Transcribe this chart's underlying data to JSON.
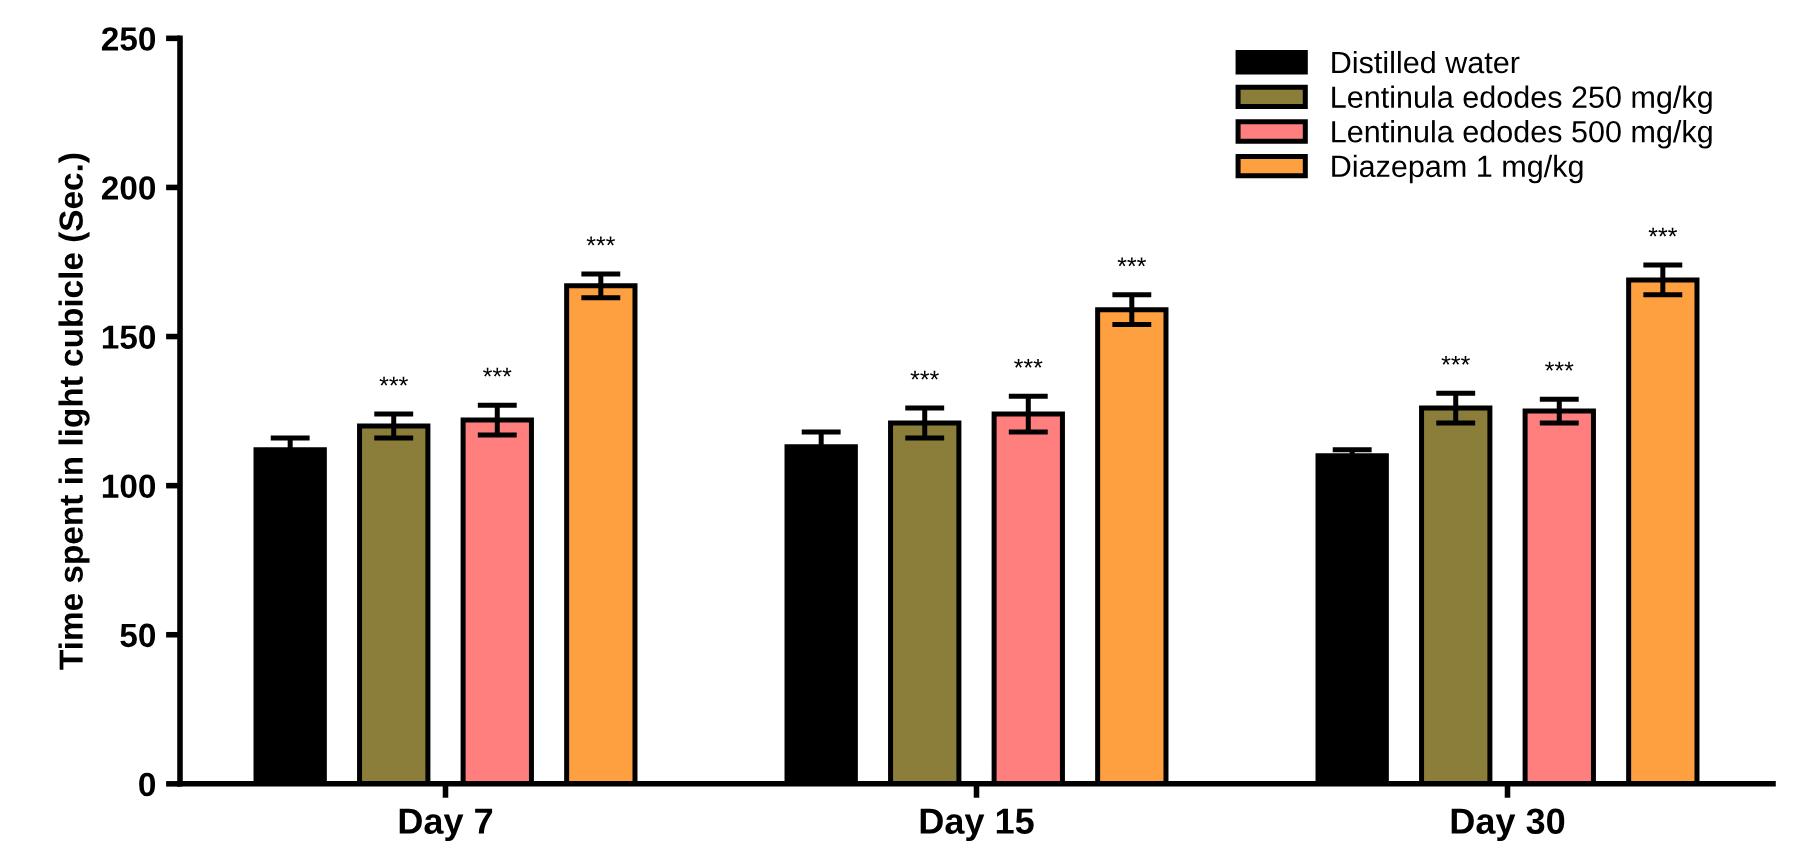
{
  "chart_data": {
    "type": "bar",
    "ylabel": "Time spent in light cubicle (Sec.)",
    "categories": [
      "Day 7",
      "Day 15",
      "Day 30"
    ],
    "series": [
      {
        "name": "Distilled water",
        "color": "#000000",
        "values": [
          112,
          113,
          110
        ],
        "errors": [
          4,
          5,
          2
        ]
      },
      {
        "name": "Lentinula edodes 250 mg/kg",
        "color": "#8b7d3a",
        "values": [
          120,
          121,
          126
        ],
        "errors": [
          4,
          5,
          5
        ],
        "value_labels": [
          "***",
          "***",
          "***"
        ]
      },
      {
        "name": "Lentinula edodes 500 mg/kg",
        "color": "#ff7f7f",
        "values": [
          122,
          124,
          125
        ],
        "errors": [
          5,
          6,
          4
        ],
        "value_labels": [
          "***",
          "***",
          "***"
        ]
      },
      {
        "name": "Diazepam 1 mg/kg",
        "color": "#ffa040",
        "values": [
          167,
          159,
          169
        ],
        "errors": [
          4,
          5,
          5
        ],
        "value_labels": [
          "***",
          "***",
          "***"
        ]
      }
    ],
    "ylim": [
      0,
      250
    ],
    "yticks": [
      0,
      50,
      100,
      150,
      200,
      250
    ],
    "grid": false,
    "legend": "top right"
  }
}
